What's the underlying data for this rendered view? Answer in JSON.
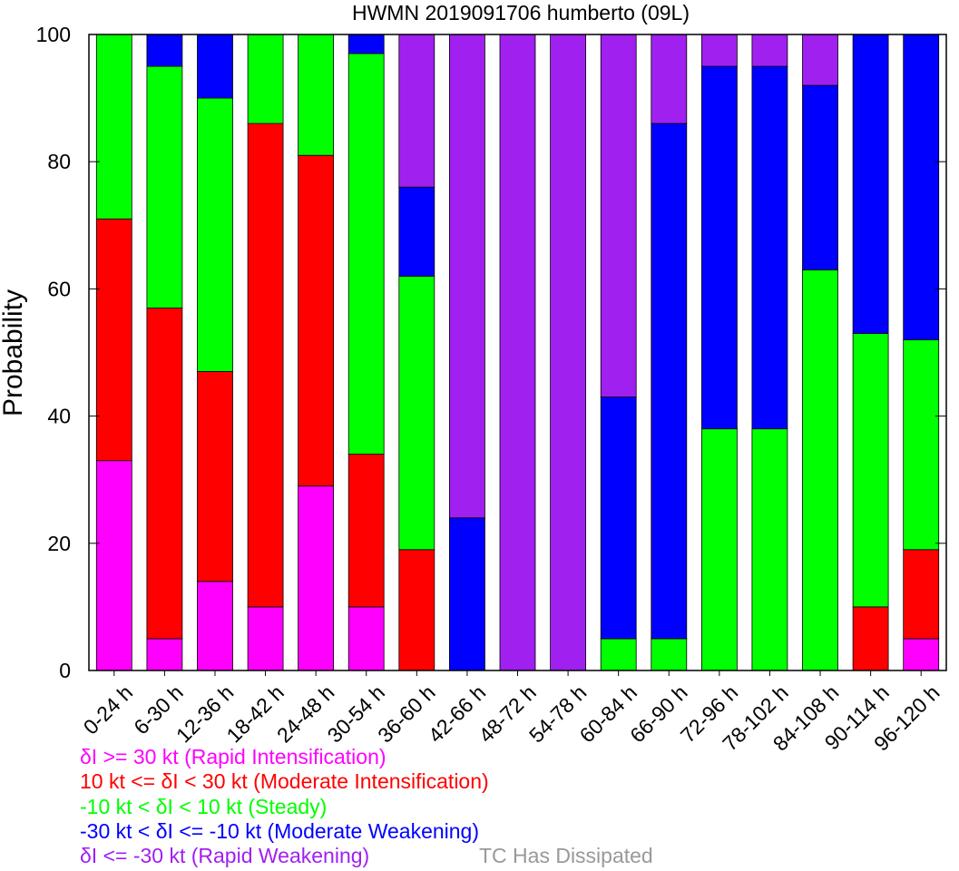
{
  "chart_data": {
    "type": "bar",
    "stacked": true,
    "title": "HWMN 2019091706 humberto (09L)",
    "xlabel": "",
    "ylabel": "Probability",
    "ylim": [
      0,
      100
    ],
    "yticks": [
      0,
      20,
      40,
      60,
      80,
      100
    ],
    "grid": false,
    "categories": [
      "0-24 h",
      "6-30 h",
      "12-36 h",
      "18-42 h",
      "24-48 h",
      "30-54 h",
      "36-60 h",
      "42-66 h",
      "48-72 h",
      "54-78 h",
      "60-84 h",
      "66-90 h",
      "72-96 h",
      "78-102 h",
      "84-108 h",
      "90-114 h",
      "96-120 h"
    ],
    "series": [
      {
        "name": "δI >= 30 kt (Rapid Intensification)",
        "color": "#ff00ff",
        "values": [
          33,
          5,
          14,
          10,
          29,
          10,
          0,
          0,
          0,
          0,
          0,
          0,
          0,
          0,
          0,
          0,
          5
        ]
      },
      {
        "name": "10 kt <= δI < 30 kt (Moderate Intensification)",
        "color": "#ff0000",
        "values": [
          38,
          52,
          33,
          76,
          52,
          24,
          19,
          0,
          0,
          0,
          0,
          0,
          0,
          0,
          0,
          10,
          14
        ]
      },
      {
        "name": "-10 kt < δI < 10 kt (Steady)",
        "color": "#00ff00",
        "values": [
          29,
          38,
          43,
          14,
          19,
          63,
          43,
          0,
          0,
          0,
          5,
          5,
          38,
          38,
          63,
          43,
          33
        ]
      },
      {
        "name": "-30 kt < δI <= -10 kt (Moderate Weakening)",
        "color": "#0000ff",
        "values": [
          0,
          5,
          10,
          0,
          0,
          3,
          14,
          24,
          0,
          0,
          38,
          81,
          57,
          57,
          29,
          47,
          48
        ]
      },
      {
        "name": "δI <= -30 kt (Rapid Weakening)",
        "color": "#a020f0",
        "values": [
          0,
          0,
          0,
          0,
          0,
          0,
          24,
          76,
          100,
          100,
          57,
          14,
          5,
          5,
          8,
          0,
          0
        ]
      }
    ],
    "dissipated_label": "TC Has Dissipated",
    "dissipated_color": "#999999"
  },
  "legend": [
    {
      "text": "δI >= 30 kt (Rapid Intensification)",
      "color": "#ff00ff"
    },
    {
      "text": "10 kt <= δI < 30 kt (Moderate Intensification)",
      "color": "#ff0000"
    },
    {
      "text": "-10 kt < δI < 10 kt (Steady)",
      "color": "#00ff00"
    },
    {
      "text": "-30 kt < δI <= -10 kt (Moderate Weakening)",
      "color": "#0000ff"
    },
    {
      "text": "δI <= -30 kt (Rapid Weakening)",
      "color": "#a020f0"
    }
  ]
}
